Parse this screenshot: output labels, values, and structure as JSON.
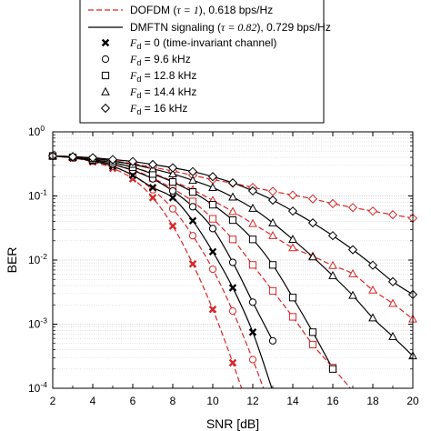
{
  "chart_data": {
    "type": "line",
    "xlabel": "SNR [dB]",
    "ylabel": "BER",
    "xlim": [
      2,
      20
    ],
    "ylim": [
      0.0001,
      1
    ],
    "yscale": "log",
    "x_ticks": [
      "2",
      "4",
      "6",
      "8",
      "10",
      "12",
      "14",
      "16",
      "18",
      "20"
    ],
    "y_ticks": [
      {
        "base": "10",
        "exp": "0",
        "value": 1
      },
      {
        "base": "10",
        "exp": "-1",
        "value": 0.1
      },
      {
        "base": "10",
        "exp": "-2",
        "value": 0.01
      },
      {
        "base": "10",
        "exp": "-3",
        "value": 0.001
      },
      {
        "base": "10",
        "exp": "-4",
        "value": 0.0001
      }
    ],
    "grid": "minor-dotted",
    "legend_placement": "top",
    "legend": {
      "dofdm": {
        "prefix": "DOFDM (",
        "tau_expr": "τ = 1",
        "suffix": "), 0.618 bps/Hz"
      },
      "dmftn": {
        "prefix": "DMFTN signaling (",
        "tau_expr": "τ = 0.82",
        "suffix": "), 0.729 bps/Hz"
      },
      "markers": [
        {
          "marker": "x",
          "sym": "F",
          "sub": "d",
          "text": " = 0 (time-invariant channel)"
        },
        {
          "marker": "circle",
          "sym": "F",
          "sub": "d",
          "text": " = 9.6 kHz"
        },
        {
          "marker": "square",
          "sym": "F",
          "sub": "d",
          "text": " = 12.8 kHz"
        },
        {
          "marker": "triangle",
          "sym": "F",
          "sub": "d",
          "text": " = 14.4 kHz"
        },
        {
          "marker": "diamond",
          "sym": "F",
          "sub": "d",
          "text": " = 16 kHz"
        }
      ]
    },
    "colors": {
      "dofdm": "#d62728",
      "dmftn": "#000000"
    },
    "series": [
      {
        "scheme": "dofdm",
        "marker": "x",
        "x": [
          2,
          3,
          4,
          5,
          6,
          7,
          8,
          9,
          10,
          11,
          12
        ],
        "y": [
          0.42,
          0.39,
          0.34,
          0.27,
          0.185,
          0.094,
          0.034,
          0.0087,
          0.0017,
          0.00025,
          3e-05
        ]
      },
      {
        "scheme": "dofdm",
        "marker": "circle",
        "x": [
          2,
          3,
          4,
          5,
          6,
          7,
          8,
          9,
          10,
          11,
          12,
          13
        ],
        "y": [
          0.42,
          0.39,
          0.35,
          0.29,
          0.21,
          0.125,
          0.063,
          0.024,
          0.0072,
          0.0016,
          0.00028,
          4e-05
        ]
      },
      {
        "scheme": "dofdm",
        "marker": "square",
        "x": [
          2,
          3,
          4,
          5,
          6,
          7,
          8,
          9,
          10,
          11,
          12,
          13,
          14,
          15,
          16,
          17
        ],
        "y": [
          0.42,
          0.4,
          0.36,
          0.31,
          0.255,
          0.19,
          0.13,
          0.082,
          0.044,
          0.021,
          0.0084,
          0.0033,
          0.0013,
          0.00048,
          0.00021,
          9e-05
        ]
      },
      {
        "scheme": "dofdm",
        "marker": "triangle",
        "x": [
          2,
          3,
          4,
          5,
          6,
          7,
          8,
          9,
          10,
          11,
          12,
          13,
          14,
          15,
          16,
          17,
          18,
          19,
          20
        ],
        "y": [
          0.42,
          0.4,
          0.37,
          0.33,
          0.28,
          0.225,
          0.17,
          0.125,
          0.085,
          0.057,
          0.037,
          0.024,
          0.0155,
          0.0115,
          0.0082,
          0.0061,
          0.0034,
          0.0021,
          0.0012
        ]
      },
      {
        "scheme": "dofdm",
        "marker": "diamond",
        "x": [
          2,
          3,
          4,
          5,
          6,
          7,
          8,
          9,
          10,
          11,
          12,
          13,
          14,
          15,
          16,
          17,
          18,
          19,
          20
        ],
        "y": [
          0.42,
          0.41,
          0.385,
          0.355,
          0.32,
          0.28,
          0.245,
          0.21,
          0.18,
          0.158,
          0.136,
          0.118,
          0.103,
          0.09,
          0.076,
          0.066,
          0.058,
          0.051,
          0.045
        ]
      },
      {
        "scheme": "dmftn",
        "marker": "x",
        "x": [
          2,
          3,
          4,
          5,
          6,
          7,
          8,
          9,
          10,
          11,
          12,
          13
        ],
        "y": [
          0.42,
          0.395,
          0.35,
          0.29,
          0.21,
          0.135,
          0.094,
          0.041,
          0.0135,
          0.0037,
          0.00075,
          9e-05
        ]
      },
      {
        "scheme": "dmftn",
        "marker": "circle",
        "x": [
          2,
          3,
          4,
          5,
          6,
          7,
          8,
          9,
          10,
          11,
          12,
          13
        ],
        "y": [
          0.42,
          0.4,
          0.36,
          0.31,
          0.25,
          0.185,
          0.12,
          0.068,
          0.031,
          0.0092,
          0.0022,
          0.00055
        ]
      },
      {
        "scheme": "dmftn",
        "marker": "square",
        "x": [
          2,
          3,
          4,
          5,
          6,
          7,
          8,
          9,
          10,
          11,
          12,
          13,
          14,
          15,
          16
        ],
        "y": [
          0.42,
          0.4,
          0.37,
          0.33,
          0.28,
          0.22,
          0.165,
          0.115,
          0.073,
          0.042,
          0.021,
          0.0084,
          0.0026,
          0.00075,
          0.0002
        ]
      },
      {
        "scheme": "dmftn",
        "marker": "triangle",
        "x": [
          2,
          3,
          4,
          5,
          6,
          7,
          8,
          9,
          10,
          11,
          12,
          13,
          14,
          15,
          16,
          17,
          18,
          19,
          20
        ],
        "y": [
          0.42,
          0.41,
          0.385,
          0.35,
          0.31,
          0.265,
          0.22,
          0.175,
          0.135,
          0.096,
          0.064,
          0.038,
          0.021,
          0.0112,
          0.0057,
          0.0028,
          0.00125,
          0.00064,
          0.00032
        ]
      },
      {
        "scheme": "dmftn",
        "marker": "diamond",
        "x": [
          2,
          3,
          4,
          5,
          6,
          7,
          8,
          9,
          10,
          11,
          12,
          13,
          14,
          15,
          16,
          17,
          18,
          19,
          20
        ],
        "y": [
          0.42,
          0.41,
          0.395,
          0.37,
          0.345,
          0.31,
          0.275,
          0.24,
          0.2,
          0.16,
          0.12,
          0.086,
          0.058,
          0.038,
          0.024,
          0.0145,
          0.0083,
          0.0046,
          0.0029
        ]
      }
    ]
  }
}
